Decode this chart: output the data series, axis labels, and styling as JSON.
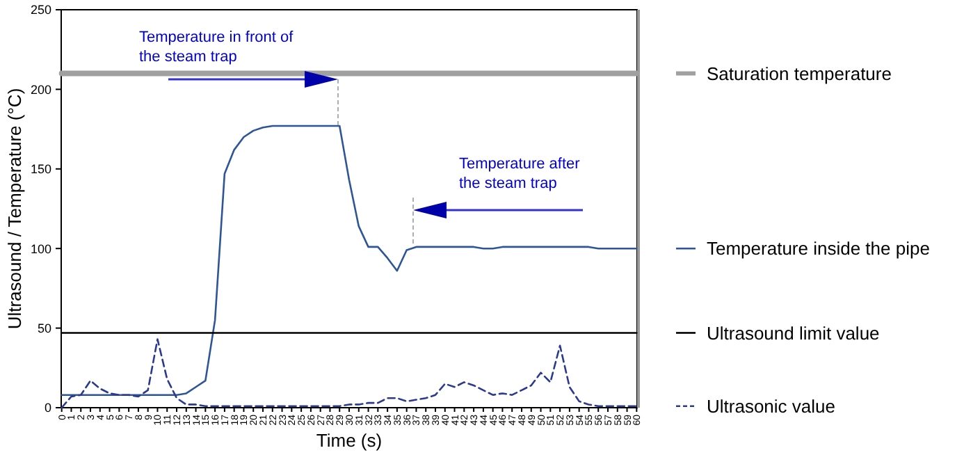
{
  "chart_data": {
    "type": "line",
    "xlabel": "Time (s)",
    "ylabel": "Ultrasound / Temperature (°C)",
    "categories": [
      "0",
      "1",
      "2",
      "3",
      "4",
      "5",
      "6",
      "7",
      "8",
      "9",
      "10",
      "11",
      "12",
      "13",
      "14",
      "15",
      "16",
      "17",
      "18",
      "19",
      "20",
      "21",
      "22",
      "23",
      "24",
      "25",
      "26",
      "27",
      "28",
      "29",
      "30",
      "31",
      "32",
      "33",
      "34",
      "35",
      "36",
      "37",
      "38",
      "39",
      "40",
      "41",
      "42",
      "43",
      "44",
      "45",
      "46",
      "47",
      "48",
      "49",
      "50",
      "51",
      "52",
      "53",
      "54",
      "55",
      "56",
      "57",
      "58",
      "59",
      "60"
    ],
    "ylim": [
      0,
      250
    ],
    "yticks": [
      0,
      50,
      100,
      150,
      200,
      250
    ],
    "grid": false,
    "legend": "right",
    "marker": "none",
    "series": [
      {
        "name": "Saturation temperature",
        "color": "#a0a0a0",
        "line_style": "solid",
        "values": [
          210,
          210,
          210,
          210,
          210,
          210,
          210,
          210,
          210,
          210,
          210,
          210,
          210,
          210,
          210,
          210,
          210,
          210,
          210,
          210,
          210,
          210,
          210,
          210,
          210,
          210,
          210,
          210,
          210,
          210,
          210,
          210,
          210,
          210,
          210,
          210,
          210,
          210,
          210,
          210,
          210,
          210,
          210,
          210,
          210,
          210,
          210,
          210,
          210,
          210,
          210,
          210,
          210,
          210,
          210,
          210,
          210,
          210,
          210,
          210,
          210
        ]
      },
      {
        "name": "Temperature inside the pipe",
        "color": "#2e5597",
        "line_style": "solid",
        "values": [
          8,
          8,
          8,
          8,
          8,
          8,
          8,
          8,
          8,
          8,
          8,
          8,
          8,
          9,
          13,
          17,
          55,
          147,
          162,
          170,
          174,
          176,
          177,
          177,
          177,
          177,
          177,
          177,
          177,
          177,
          143,
          114,
          101,
          101,
          94,
          86,
          99,
          101,
          101,
          101,
          101,
          101,
          101,
          101,
          100,
          100,
          101,
          101,
          101,
          101,
          101,
          101,
          101,
          101,
          101,
          101,
          100,
          100,
          100,
          100,
          100
        ]
      },
      {
        "name": "Ultrasound limit value",
        "color": "#000000",
        "line_style": "solid",
        "values": [
          47,
          47,
          47,
          47,
          47,
          47,
          47,
          47,
          47,
          47,
          47,
          47,
          47,
          47,
          47,
          47,
          47,
          47,
          47,
          47,
          47,
          47,
          47,
          47,
          47,
          47,
          47,
          47,
          47,
          47,
          47,
          47,
          47,
          47,
          47,
          47,
          47,
          47,
          47,
          47,
          47,
          47,
          47,
          47,
          47,
          47,
          47,
          47,
          47,
          47,
          47,
          47,
          47,
          47,
          47,
          47,
          47,
          47,
          47,
          47,
          47
        ]
      },
      {
        "name": "Ultrasonic value",
        "color": "#2b3a8f",
        "line_style": "dashed",
        "values": [
          0,
          7,
          8,
          17,
          12,
          9,
          8,
          8,
          7,
          11,
          43,
          18,
          6,
          2,
          2,
          1,
          1,
          1,
          1,
          1,
          1,
          1,
          1,
          1,
          1,
          1,
          1,
          1,
          1,
          1,
          2,
          2,
          3,
          3,
          6,
          6,
          4,
          5,
          6,
          8,
          15,
          13,
          16,
          14,
          11,
          8,
          9,
          8,
          11,
          14,
          22,
          16,
          39,
          13,
          4,
          2,
          1,
          1,
          1,
          1,
          1
        ]
      }
    ],
    "annotations": [
      "Temperature in front of\nthe steam trap",
      "Temperature after\nthe steam trap"
    ]
  }
}
